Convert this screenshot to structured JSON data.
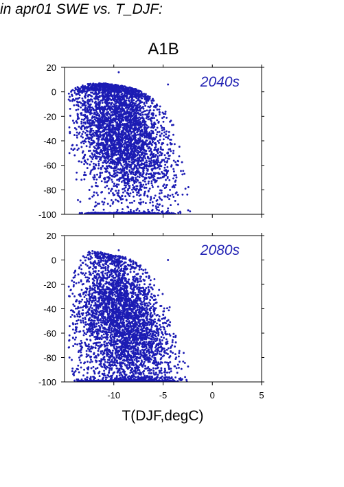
{
  "heading": "in apr01 SWE vs. T_DJF:",
  "scenario": "A1B",
  "colors": {
    "points": "#1c1cb4",
    "panel_label": "#2323b4",
    "axis": "#000000"
  },
  "chart_data": [
    {
      "type": "scatter",
      "panel_label": "2040s",
      "xlabel": "T(DJF,degC)",
      "ylabel": "",
      "xlim": [
        -15,
        5
      ],
      "ylim": [
        -100,
        20
      ],
      "yticks": [
        20,
        0,
        -20,
        -40,
        -60,
        -80,
        -100
      ],
      "xticks": [],
      "envelope": {
        "x": [
          -15,
          -14,
          -13,
          -12,
          -11,
          -10,
          -9,
          -8,
          -7,
          -6,
          -5,
          -4,
          -3,
          -2,
          -1.5
        ],
        "y_top": [
          -2,
          3,
          6,
          7,
          7,
          6,
          5,
          3,
          0,
          -6,
          -14,
          -22,
          -46,
          -96,
          -100
        ],
        "y_bottom": [
          -25,
          -90,
          -100,
          -100,
          -100,
          -100,
          -100,
          -100,
          -100,
          -100,
          -100,
          -100,
          -100,
          -100,
          -100
        ],
        "core_y": [
          -12,
          -14,
          -18,
          -20,
          -22,
          -26,
          -30,
          -34,
          -38,
          -44,
          -52,
          -62,
          -78,
          -97,
          -100
        ]
      },
      "floor_value": -100,
      "floor_x_range": [
        -13.5,
        -1.5
      ]
    },
    {
      "type": "scatter",
      "panel_label": "2080s",
      "xlabel": "T(DJF,degC)",
      "ylabel": "",
      "xlim": [
        -15,
        5
      ],
      "ylim": [
        -100,
        20
      ],
      "yticks": [
        20,
        0,
        -20,
        -40,
        -60,
        -80,
        -100
      ],
      "xticks": [
        "-10",
        "-5",
        "0",
        "5"
      ],
      "xtick_values": [
        -10,
        -5,
        0,
        5
      ],
      "envelope": {
        "x": [
          -15,
          -14,
          -13,
          -12,
          -11,
          -10,
          -9,
          -8,
          -7,
          -6,
          -5,
          -4,
          -3,
          -2,
          -1.5
        ],
        "y_top": [
          -18,
          -10,
          6,
          8,
          6,
          4,
          3,
          0,
          -6,
          -14,
          -24,
          -36,
          -60,
          -98,
          -100
        ],
        "y_bottom": [
          -60,
          -100,
          -100,
          -100,
          -100,
          -100,
          -100,
          -100,
          -100,
          -100,
          -100,
          -100,
          -100,
          -100,
          -100
        ],
        "core_y": [
          -55,
          -50,
          -45,
          -42,
          -42,
          -45,
          -50,
          -55,
          -60,
          -66,
          -72,
          -80,
          -90,
          -99,
          -100
        ]
      },
      "floor_value": -100,
      "floor_x_range": [
        -14,
        -1.5
      ]
    }
  ]
}
